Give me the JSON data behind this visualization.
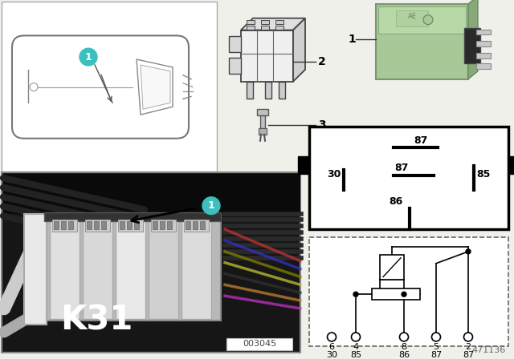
{
  "bg_color": "#f0f0eb",
  "white": "#ffffff",
  "black": "#000000",
  "teal": "#3bbfbf",
  "light_green_relay": "#adc9a0",
  "part_num": "471136",
  "photo_num": "003045",
  "K31_label": "K31",
  "car_outline_color": "#888888",
  "connector_color": "#555555",
  "pin_map_border": 3.0,
  "schematic_dash": "--"
}
